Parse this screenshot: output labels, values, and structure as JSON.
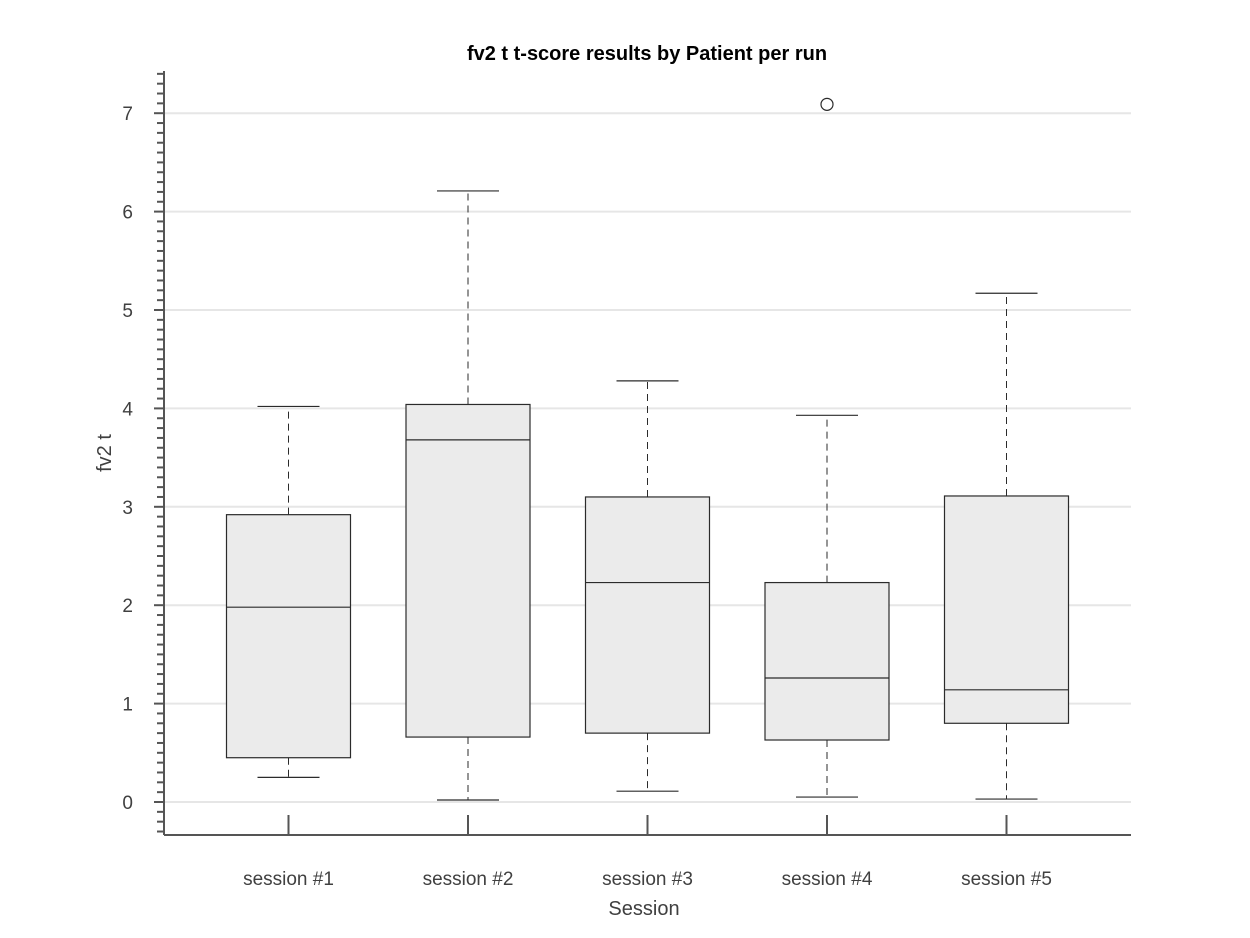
{
  "chart_data": {
    "type": "boxplot",
    "title": "fv2 t  t-score results by Patient per run",
    "xlabel": "Session",
    "ylabel": "fv2 t",
    "ylim": [
      -0.33,
      7.43
    ],
    "yticks": [
      0,
      1,
      2,
      3,
      4,
      5,
      6,
      7
    ],
    "grid": "horizontal",
    "categories": [
      "session #1",
      "session #2",
      "session #3",
      "session #4",
      "session #5"
    ],
    "boxes": [
      {
        "category": "session #1",
        "whisker_low": 0.25,
        "q1": 0.45,
        "median": 1.98,
        "q3": 2.92,
        "whisker_high": 4.02,
        "outliers": []
      },
      {
        "category": "session #2",
        "whisker_low": 0.02,
        "q1": 0.66,
        "median": 3.68,
        "q3": 4.04,
        "whisker_high": 6.21,
        "outliers": []
      },
      {
        "category": "session #3",
        "whisker_low": 0.11,
        "q1": 0.7,
        "median": 2.23,
        "q3": 3.1,
        "whisker_high": 4.28,
        "outliers": []
      },
      {
        "category": "session #4",
        "whisker_low": 0.05,
        "q1": 0.63,
        "median": 1.26,
        "q3": 2.23,
        "whisker_high": 3.93,
        "outliers": [
          7.09
        ]
      },
      {
        "category": "session #5",
        "whisker_low": 0.03,
        "q1": 0.8,
        "median": 1.14,
        "q3": 3.11,
        "whisker_high": 5.17,
        "outliers": []
      }
    ],
    "colors": {
      "box_fill": "#ebebeb",
      "box_stroke": "#2b2b2b",
      "axis": "#555555",
      "grid": "#e6e6e6",
      "tick_label": "#404040",
      "title": "#000000"
    }
  }
}
